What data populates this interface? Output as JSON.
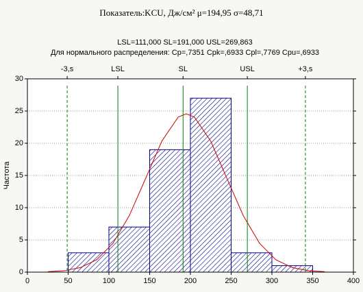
{
  "chart_data": {
    "type": "histogram",
    "title": "Показатель:KCU, Дж/см² μ=194,95 σ=48,71",
    "subtitle": [
      "LSL=111,000 SL=191,000 USL=269,863",
      "Для нормального распределения: Cp=,7351 Cpk=,6933 Cpl=,7769 Cpu=,6933"
    ],
    "y_label": "Частота",
    "bins": [
      50,
      100,
      150,
      200,
      250,
      300,
      350
    ],
    "values": [
      3,
      7,
      19,
      27,
      3,
      1
    ],
    "color": "#00008b",
    "xlim": [
      0,
      400
    ],
    "ylim": [
      0,
      30
    ],
    "xticks": [
      0,
      50,
      100,
      150,
      200,
      250,
      300,
      350,
      400
    ],
    "yticks": [
      0,
      5,
      10,
      15,
      20,
      25,
      30
    ],
    "grid": true,
    "curve": {
      "color": "#cc0000",
      "x": [
        25,
        45,
        65,
        85,
        105,
        125,
        145,
        165,
        185,
        195,
        205,
        225,
        245,
        265,
        285,
        305,
        325,
        345,
        365
      ],
      "values": [
        0.06,
        0.22,
        0.7,
        1.92,
        4.47,
        8.76,
        14.52,
        20.34,
        24.06,
        24.57,
        24.05,
        20.32,
        14.49,
        8.74,
        4.45,
        1.91,
        0.7,
        0.21,
        0.06
      ]
    },
    "spec_lines": [
      {
        "name": "-3,s",
        "value": 48.82,
        "style": "dashed",
        "color": "#008000"
      },
      {
        "name": "LSL",
        "value": 111,
        "style": "solid",
        "color": "#008000"
      },
      {
        "name": "SL",
        "value": 191,
        "style": "solid",
        "color": "#008000"
      },
      {
        "name": "USL",
        "value": 269.863,
        "style": "solid",
        "color": "#008000"
      },
      {
        "name": "+3,s",
        "value": 341.08,
        "style": "dashed",
        "color": "#008000"
      }
    ]
  }
}
